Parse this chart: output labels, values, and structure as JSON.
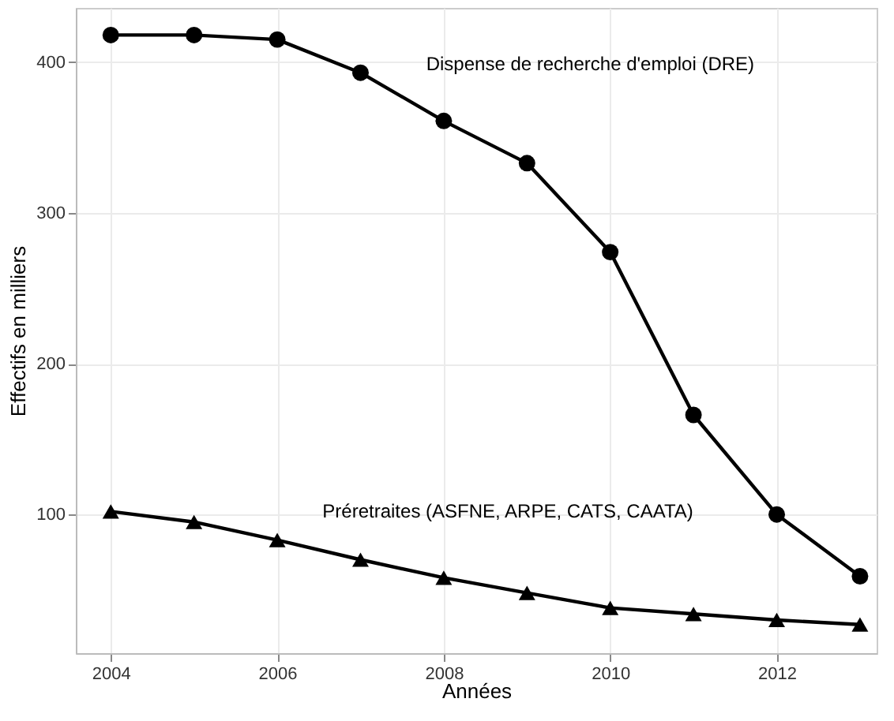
{
  "chart_data": {
    "type": "line",
    "xlabel": "Années",
    "ylabel": "Effectifs en milliers",
    "x": [
      2004,
      2005,
      2006,
      2007,
      2008,
      2009,
      2010,
      2011,
      2012,
      2013
    ],
    "series": [
      {
        "name": "Dispense de recherche d'emploi (DRE)",
        "color": "#000000",
        "marker": "circle",
        "values": [
          418,
          418,
          415,
          393,
          361,
          333,
          274,
          166,
          100,
          59
        ]
      },
      {
        "name": "Préretraites (ASFNE, ARPE, CATS, CAATA)",
        "color": "#000000",
        "marker": "triangle",
        "values": [
          102,
          95,
          83,
          70,
          58,
          48,
          38,
          34,
          30,
          27
        ]
      }
    ],
    "xlim": [
      2003.58,
      2013.2
    ],
    "ylim": [
      8,
      436
    ],
    "xticks": [
      2004,
      2006,
      2008,
      2010,
      2012
    ],
    "yticks": [
      100,
      200,
      300,
      400
    ],
    "grid": true,
    "line_style": "solid"
  }
}
